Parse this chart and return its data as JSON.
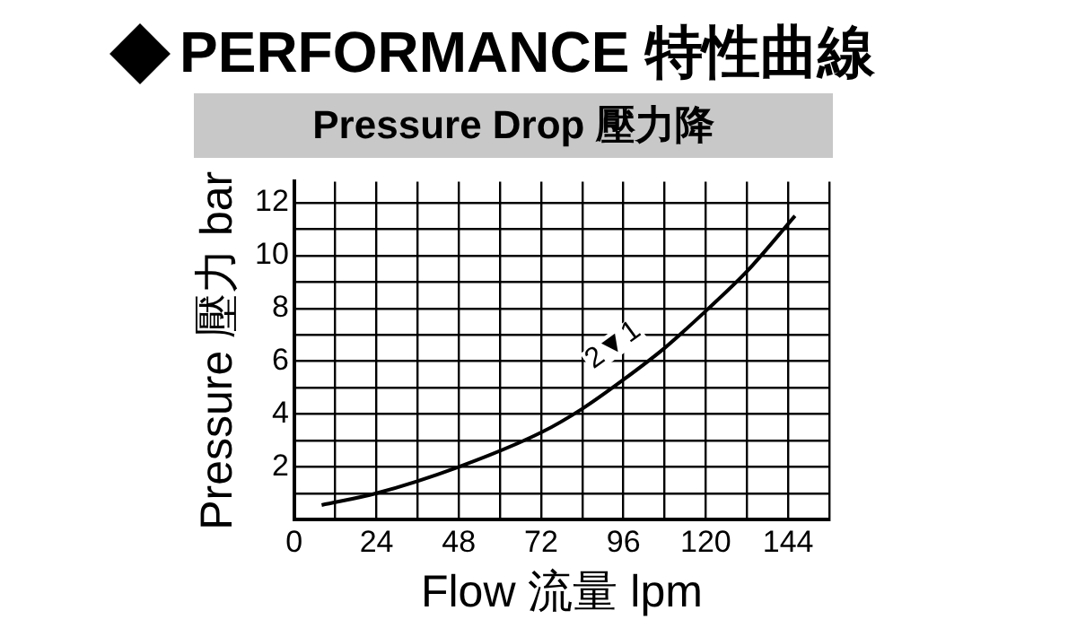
{
  "chart_data": {
    "type": "line",
    "title": "PERFORMANCE 特性曲線",
    "subtitle": "Pressure Drop 壓力降",
    "xlabel": "Flow 流量 lpm",
    "ylabel": "Pressure 壓力 bar",
    "x": [
      8,
      24,
      48,
      72,
      84,
      96,
      108,
      120,
      132,
      146
    ],
    "series": [
      {
        "color": "#000000",
        "values": [
          0.55,
          1.0,
          2.0,
          3.3,
          4.2,
          5.3,
          6.5,
          7.9,
          9.4,
          11.5
        ]
      }
    ],
    "xlim": [
      0,
      156
    ],
    "xticks": [
      0,
      {
        "value": 12,
        "label": null
      },
      24,
      {
        "value": 36,
        "label": null
      },
      48,
      {
        "value": 60,
        "label": null
      },
      72,
      {
        "value": 84,
        "label": null
      },
      96,
      {
        "value": 108,
        "label": null
      },
      120,
      {
        "value": 132,
        "label": null
      },
      144,
      {
        "value": 156,
        "label": null
      }
    ],
    "ylim": [
      0,
      12.8
    ],
    "yticks": [
      {
        "value": 0,
        "label": null
      },
      {
        "value": 1,
        "label": null
      },
      2,
      {
        "value": 3,
        "label": null
      },
      4,
      {
        "value": 5,
        "label": null
      },
      6,
      {
        "value": 7,
        "label": null
      },
      8,
      {
        "value": 9,
        "label": null
      },
      10,
      {
        "value": 11,
        "label": null
      },
      12
    ],
    "grid": true,
    "legend": false,
    "marker": "none",
    "line_style": "solid",
    "annotations": [
      {
        "text": "2▼1",
        "x": 93,
        "y": 6.6
      }
    ]
  }
}
